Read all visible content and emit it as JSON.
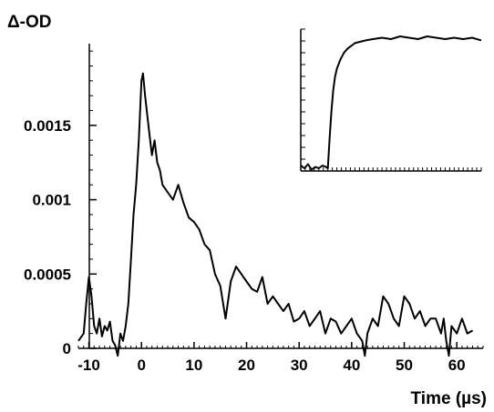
{
  "chart_data": {
    "type": "line",
    "title": "",
    "xlabel": "Time (µs)",
    "ylabel": "Δ-OD",
    "xlim": [
      -12,
      65
    ],
    "ylim": [
      0,
      0.00205
    ],
    "x_ticks": [
      -10,
      0,
      10,
      20,
      30,
      40,
      50,
      60
    ],
    "x_tick_labels": [
      "-10",
      "0",
      "10",
      "20",
      "30",
      "40",
      "50",
      "60"
    ],
    "y_ticks": [
      0,
      0.0005,
      0.001,
      0.0015
    ],
    "y_tick_labels": [
      "0",
      "0.0005",
      "0.001",
      "0.0015"
    ],
    "grid": false,
    "legend": "none",
    "series": [
      {
        "x": [
          -12,
          -11,
          -10.5,
          -10,
          -9.5,
          -9,
          -8.5,
          -8,
          -7.5,
          -7,
          -6.5,
          -6,
          -5.5,
          -5,
          -4.5,
          -4,
          -3.5,
          -3,
          -2.5,
          -2,
          -1.5,
          -1,
          -0.5,
          0,
          0.3,
          0.7,
          1,
          1.5,
          2,
          2.5,
          3,
          3.5,
          4,
          5,
          6,
          7,
          8,
          9,
          10,
          11,
          12,
          13,
          14,
          15,
          16,
          17,
          18,
          19,
          20,
          21,
          22,
          23,
          24,
          25,
          26,
          27,
          28,
          29,
          30,
          31,
          32,
          33,
          34,
          35,
          36,
          37,
          38,
          39,
          40,
          41,
          42,
          42.5,
          43,
          44,
          45,
          46,
          47,
          48,
          49,
          50,
          51,
          52,
          53,
          54,
          55,
          56,
          57,
          57.5,
          58,
          58.5,
          59,
          60,
          61,
          62,
          63
        ],
        "y": [
          5e-05,
          0.0001,
          0.0003,
          0.00048,
          0.00035,
          0.00015,
          0.0001,
          0.0002,
          8e-05,
          0.00015,
          0.00012,
          0.00018,
          5e-05,
          2e-05,
          -5e-05,
          0.0001,
          5e-05,
          0.00015,
          0.0003,
          0.0006,
          0.0009,
          0.0011,
          0.0014,
          0.0018,
          0.00185,
          0.0017,
          0.0016,
          0.00145,
          0.0013,
          0.0014,
          0.00125,
          0.0012,
          0.0011,
          0.00105,
          0.001,
          0.0011,
          0.00098,
          0.00088,
          0.00085,
          0.0008,
          0.0007,
          0.00066,
          0.0005,
          0.00042,
          0.0002,
          0.00045,
          0.00055,
          0.0005,
          0.00045,
          0.0004,
          0.00038,
          0.00048,
          0.0003,
          0.00035,
          0.0003,
          0.00025,
          0.0003,
          0.00018,
          0.0002,
          0.00025,
          0.00015,
          0.0002,
          0.00025,
          0.0001,
          0.0002,
          0.00018,
          0.0001,
          0.00015,
          0.0002,
          0.0001,
          5e-05,
          -5e-05,
          0.0001,
          0.0002,
          0.00015,
          0.00035,
          0.0003,
          0.0002,
          0.00015,
          0.00035,
          0.0003,
          0.0002,
          0.00025,
          0.00015,
          0.0002,
          0.0002,
          0.0001,
          0.0002,
          5e-05,
          -5e-05,
          0.00015,
          0.0001,
          0.0002,
          0.0001,
          0.00012
        ]
      }
    ],
    "inset": {
      "type": "line",
      "series": [
        {
          "x": [
            0,
            0.02,
            0.04,
            0.06,
            0.08,
            0.1,
            0.12,
            0.14,
            0.15,
            0.16,
            0.17,
            0.18,
            0.19,
            0.2,
            0.22,
            0.24,
            0.26,
            0.28,
            0.3,
            0.33,
            0.36,
            0.4,
            0.45,
            0.5,
            0.55,
            0.6,
            0.65,
            0.7,
            0.75,
            0.8,
            0.85,
            0.9,
            0.95,
            1.0
          ],
          "y": [
            0.04,
            0.02,
            0.05,
            0.01,
            0.03,
            0.02,
            0.04,
            0.03,
            0.02,
            0.25,
            0.45,
            0.6,
            0.7,
            0.76,
            0.83,
            0.88,
            0.91,
            0.93,
            0.95,
            0.96,
            0.97,
            0.98,
            0.99,
            0.98,
            1.0,
            0.99,
            0.98,
            1.0,
            0.99,
            0.98,
            0.99,
            0.98,
            0.99,
            0.97
          ]
        }
      ]
    }
  }
}
